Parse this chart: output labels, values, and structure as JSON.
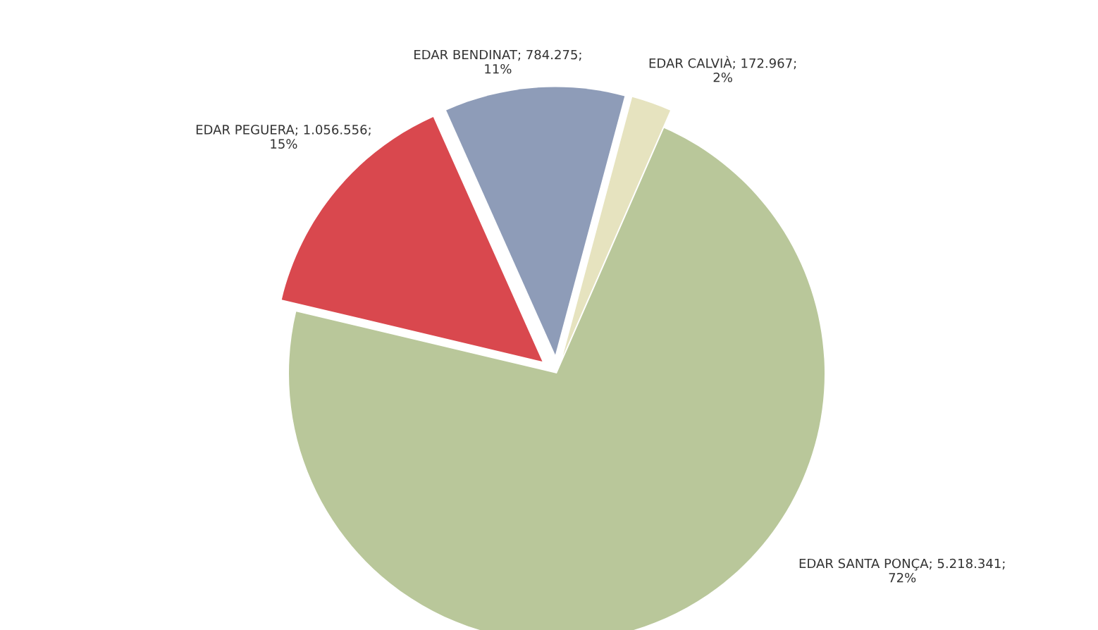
{
  "chart_data": {
    "type": "pie",
    "categories": [
      "EDAR CALVIÀ",
      "EDAR SANTA PONÇA",
      "EDAR PEGUERA",
      "EDAR BENDINAT"
    ],
    "values": [
      172967,
      5218341,
      1056556,
      784275
    ],
    "value_labels": [
      "172.967;\n2%",
      "5.218.341;\n72%",
      "1.056.556;\n15%",
      "784.275;\n11%"
    ],
    "colors": [
      "#e6e3bf",
      "#b9c79a",
      "#d9484e",
      "#8e9cb8"
    ],
    "legend": false
  }
}
